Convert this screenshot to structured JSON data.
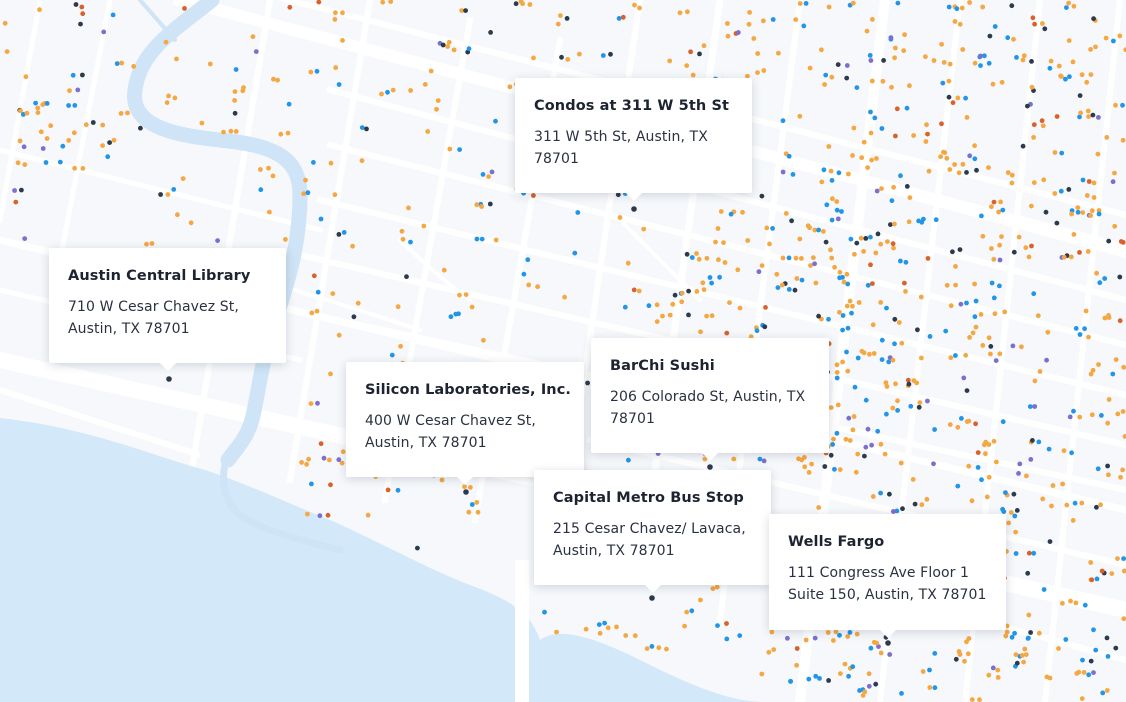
{
  "colors": {
    "land": "#f6f8fb",
    "street": "#ffffff",
    "water": "#d3e8f8",
    "marker_orange": "#f5a742",
    "marker_blue": "#2196e8",
    "marker_navy": "#2c3a4e",
    "marker_purple": "#7b6fd0",
    "marker_rust": "#d9622b"
  },
  "places": [
    {
      "name": "Condos at 311 W 5th St",
      "address": "311 W 5th St, Austin, TX 78701"
    },
    {
      "name": "Austin Central Library",
      "address": "710 W Cesar Chavez St, Austin, TX 78701"
    },
    {
      "name": "Silicon Laboratories, Inc.",
      "address": "400 W Cesar Chavez St, Austin, TX 78701"
    },
    {
      "name": "BarChi Sushi",
      "address": "206 Colorado St, Austin, TX 78701"
    },
    {
      "name": "Capital Metro Bus Stop",
      "address": "215 Cesar Chavez/ Lavaca, Austin, TX 78701"
    },
    {
      "name": "Wells Fargo",
      "address": "111 Congress Ave Floor 1 Suite 150, Austin, TX 78701"
    }
  ]
}
